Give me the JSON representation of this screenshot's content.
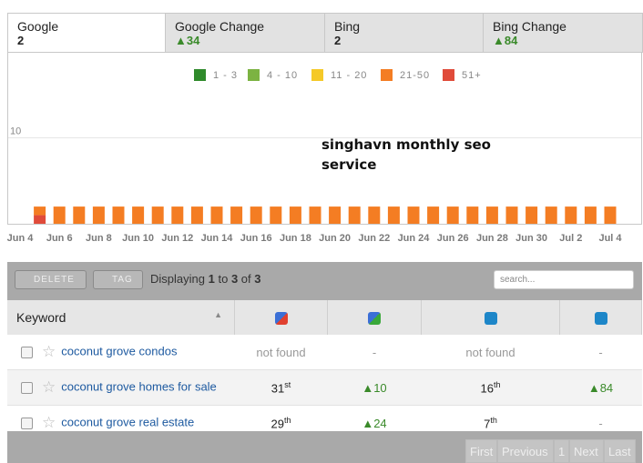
{
  "tabs": [
    {
      "label": "Google",
      "value": "2"
    },
    {
      "label": "Google Change",
      "arrow": "▲",
      "value": "34"
    },
    {
      "label": "Bing",
      "value": "2"
    },
    {
      "label": "Bing Change",
      "arrow": "▲",
      "value": "84"
    }
  ],
  "chart_data": {
    "type": "bar",
    "stacked": true,
    "annotation": "singhavn monthly seo service",
    "categories": [
      "Jun 4",
      null,
      "Jun 6",
      null,
      "Jun 8",
      null,
      "Jun 10",
      null,
      "Jun 12",
      null,
      "Jun 14",
      null,
      "Jun 16",
      null,
      "Jun 18",
      null,
      "Jun 20",
      null,
      "Jun 22",
      null,
      "Jun 24",
      null,
      "Jun 26",
      null,
      "Jun 28",
      null,
      "Jun 30",
      null,
      "Jul 2",
      null,
      "Jul 4"
    ],
    "series": [
      {
        "name": "1 - 3",
        "color": "#2f8a2b",
        "values": [
          null,
          0,
          0,
          0,
          0,
          0,
          0,
          0,
          0,
          0,
          0,
          0,
          0,
          0,
          0,
          0,
          0,
          0,
          0,
          0,
          0,
          0,
          0,
          0,
          0,
          0,
          0,
          0,
          0,
          0,
          0
        ]
      },
      {
        "name": "4 - 10",
        "color": "#7cb342",
        "values": [
          null,
          0,
          0,
          0,
          0,
          0,
          0,
          0,
          0,
          0,
          0,
          0,
          0,
          0,
          0,
          0,
          0,
          0,
          0,
          0,
          0,
          0,
          0,
          0,
          0,
          0,
          0,
          0,
          0,
          0,
          0
        ]
      },
      {
        "name": "11 - 20",
        "color": "#f5c928",
        "values": [
          null,
          0,
          0,
          0,
          0,
          0,
          0,
          0,
          0,
          0,
          0,
          0,
          0,
          0,
          0,
          0,
          0,
          0,
          0,
          0,
          0,
          0,
          0,
          0,
          0,
          0,
          0,
          0,
          0,
          0,
          0
        ]
      },
      {
        "name": "21-50",
        "color": "#f47d23",
        "values": [
          null,
          1,
          2,
          2,
          2,
          2,
          2,
          2,
          2,
          2,
          2,
          2,
          2,
          2,
          2,
          2,
          2,
          2,
          2,
          2,
          2,
          2,
          2,
          2,
          2,
          2,
          2,
          2,
          2,
          2,
          2
        ]
      },
      {
        "name": "51+",
        "color": "#e04b3a",
        "values": [
          null,
          1,
          0,
          0,
          0,
          0,
          0,
          0,
          0,
          0,
          0,
          0,
          0,
          0,
          0,
          0,
          0,
          0,
          0,
          0,
          0,
          0,
          0,
          0,
          0,
          0,
          0,
          0,
          0,
          0,
          0
        ]
      }
    ],
    "ylim": [
      0,
      20
    ],
    "yticks": [
      10
    ],
    "grid": true
  },
  "toolbar": {
    "delete": "DELETE",
    "tag": "TAG",
    "display": [
      "Displaying",
      "1",
      "to",
      "3",
      "of",
      "3"
    ],
    "search": "search..."
  },
  "table": {
    "header": "Keyword",
    "rows": [
      {
        "keyword": "coconut grove condos",
        "google": "not found",
        "google_change": "-",
        "bing": "not found",
        "bing_change": "-"
      },
      {
        "keyword": "coconut grove homes for sale",
        "google": {
          "rank": "31",
          "suffix": "st"
        },
        "google_change": {
          "arrow": "▲",
          "value": "10"
        },
        "bing": {
          "rank": "16",
          "suffix": "th"
        },
        "bing_change": {
          "arrow": "▲",
          "value": "84"
        }
      },
      {
        "keyword": "coconut grove real estate",
        "google": {
          "rank": "29",
          "suffix": "th"
        },
        "google_change": {
          "arrow": "▲",
          "value": "24"
        },
        "bing": {
          "rank": "7",
          "suffix": "th"
        },
        "bing_change": "-"
      }
    ]
  },
  "pagination": [
    "First",
    "Previous",
    "1",
    "Next",
    "Last"
  ]
}
